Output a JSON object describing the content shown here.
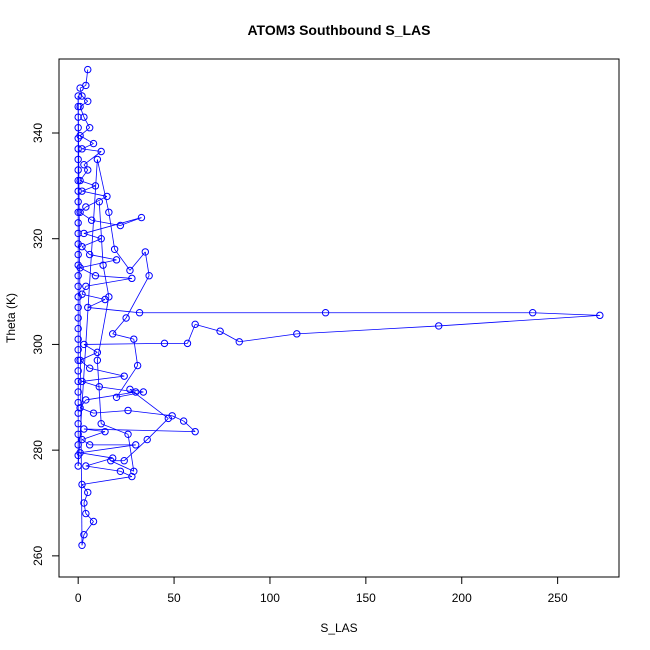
{
  "chart_data": {
    "type": "scatter",
    "title": "ATOM3 Southbound S_LAS",
    "xlabel": "S_LAS",
    "ylabel": "Theta (K)",
    "xlim": [
      -10,
      282
    ],
    "ylim": [
      256,
      354
    ],
    "x_ticks": [
      0,
      50,
      100,
      150,
      200,
      250
    ],
    "y_ticks": [
      260,
      280,
      300,
      320,
      340
    ],
    "grid": false,
    "legend": "none",
    "series_color": "#0000ff",
    "marker": "open-circle",
    "connected": true,
    "points": [
      [
        5,
        352
      ],
      [
        4,
        349
      ],
      [
        1,
        348.5
      ],
      [
        2,
        347
      ],
      [
        5,
        346
      ],
      [
        1,
        345
      ],
      [
        3,
        343
      ],
      [
        6,
        341
      ],
      [
        1,
        339.5
      ],
      [
        8,
        338
      ],
      [
        2,
        337
      ],
      [
        12,
        336.5
      ],
      [
        3,
        334
      ],
      [
        5,
        333
      ],
      [
        1,
        331
      ],
      [
        9,
        330
      ],
      [
        2,
        329
      ],
      [
        15,
        328
      ],
      [
        4,
        326
      ],
      [
        1,
        325
      ],
      [
        7,
        323.5
      ],
      [
        22,
        322.5
      ],
      [
        33,
        324
      ],
      [
        3,
        321
      ],
      [
        12,
        320
      ],
      [
        2,
        318.5
      ],
      [
        6,
        317
      ],
      [
        20,
        316
      ],
      [
        1,
        314.5
      ],
      [
        9,
        313
      ],
      [
        28,
        312.5
      ],
      [
        4,
        311
      ],
      [
        2,
        309.5
      ],
      [
        14,
        308.5
      ],
      [
        5,
        307
      ],
      [
        32,
        306
      ],
      [
        129,
        306
      ],
      [
        237,
        306
      ],
      [
        272,
        305.5
      ],
      [
        188,
        303.5
      ],
      [
        114,
        302
      ],
      [
        84,
        300.5
      ],
      [
        74,
        302.5
      ],
      [
        61,
        303.8
      ],
      [
        57,
        300.2
      ],
      [
        45,
        300.2
      ],
      [
        3,
        300
      ],
      [
        10,
        298.5
      ],
      [
        1,
        297
      ],
      [
        6,
        295.5
      ],
      [
        24,
        294
      ],
      [
        2,
        293
      ],
      [
        11,
        292
      ],
      [
        30,
        291
      ],
      [
        4,
        289.5
      ],
      [
        1,
        288
      ],
      [
        8,
        287
      ],
      [
        26,
        287.5
      ],
      [
        49,
        286.5
      ],
      [
        55,
        285.5
      ],
      [
        61,
        283.5
      ],
      [
        3,
        284
      ],
      [
        14,
        283.5
      ],
      [
        2,
        282
      ],
      [
        6,
        281
      ],
      [
        30,
        281
      ],
      [
        1,
        279.5
      ],
      [
        18,
        278.5
      ],
      [
        4,
        277
      ],
      [
        22,
        276
      ],
      [
        28,
        275
      ],
      [
        2,
        273.5
      ],
      [
        5,
        272
      ],
      [
        3,
        270
      ],
      [
        4,
        268
      ],
      [
        8,
        266.5
      ],
      [
        3,
        264
      ],
      [
        2,
        262
      ],
      [
        0,
        347
      ],
      [
        0,
        345
      ],
      [
        0,
        343
      ],
      [
        0,
        341
      ],
      [
        0,
        339
      ],
      [
        0,
        337
      ],
      [
        0,
        335
      ],
      [
        0,
        333
      ],
      [
        0,
        331
      ],
      [
        0,
        329
      ],
      [
        0,
        327
      ],
      [
        0,
        325
      ],
      [
        0,
        323
      ],
      [
        0,
        321
      ],
      [
        0,
        319
      ],
      [
        0,
        317
      ],
      [
        0,
        315
      ],
      [
        0,
        313
      ],
      [
        0,
        311
      ],
      [
        0,
        309
      ],
      [
        0,
        307
      ],
      [
        0,
        305
      ],
      [
        0,
        303
      ],
      [
        0,
        301
      ],
      [
        0,
        299
      ],
      [
        0,
        297
      ],
      [
        0,
        295
      ],
      [
        0,
        293
      ],
      [
        0,
        291
      ],
      [
        0,
        289
      ],
      [
        0,
        287
      ],
      [
        0,
        285
      ],
      [
        0,
        283
      ],
      [
        0,
        281
      ],
      [
        0,
        279
      ],
      [
        0,
        277
      ],
      [
        10,
        335
      ],
      [
        16,
        325
      ],
      [
        19,
        318
      ],
      [
        27,
        314
      ],
      [
        35,
        317.5
      ],
      [
        37,
        313
      ],
      [
        25,
        305
      ],
      [
        18,
        302
      ],
      [
        29,
        301
      ],
      [
        31,
        296
      ],
      [
        20,
        290
      ],
      [
        34,
        291
      ],
      [
        27,
        291.5
      ],
      [
        47,
        286
      ],
      [
        36,
        282
      ],
      [
        24,
        278
      ],
      [
        17,
        278
      ],
      [
        29,
        276
      ],
      [
        26,
        283
      ],
      [
        12,
        285
      ],
      [
        10,
        297
      ],
      [
        16,
        309
      ],
      [
        13,
        315
      ],
      [
        11,
        327
      ]
    ]
  }
}
